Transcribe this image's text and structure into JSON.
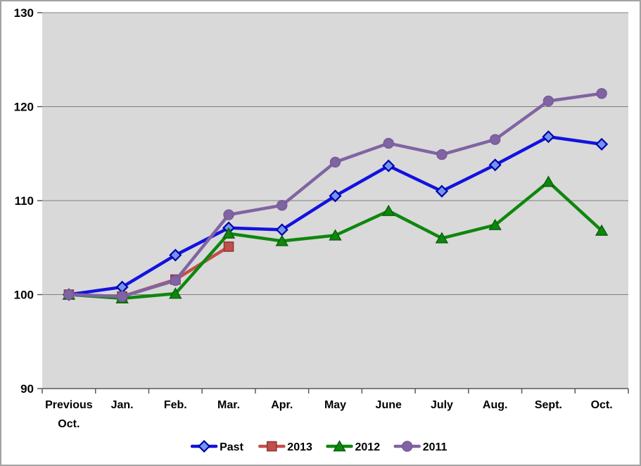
{
  "chart_data": {
    "type": "line",
    "title": "",
    "xlabel": "",
    "ylabel": "",
    "ylim": [
      90,
      130
    ],
    "y_ticks": [
      90,
      100,
      110,
      120,
      130
    ],
    "grid": "horizontal",
    "plot_bg_color": "#d9d9d9",
    "gridline_color": "#808080",
    "axis_color": "#595959",
    "legend_position": "bottom-center",
    "categories": [
      "Previous Oct.",
      "Jan.",
      "Feb.",
      "Mar.",
      "Apr.",
      "May",
      "June",
      "July",
      "Aug.",
      "Sept.",
      "Oct."
    ],
    "series": [
      {
        "name": "Past",
        "marker": "diamond",
        "color": "#1212e0",
        "marker_fill": "#7096f0",
        "marker_stroke": "#0000a8",
        "values": [
          100,
          100.8,
          104.2,
          107.1,
          106.9,
          110.5,
          113.7,
          111.0,
          113.8,
          116.8,
          116.0
        ]
      },
      {
        "name": "2013",
        "marker": "square",
        "color": "#c0504d",
        "marker_fill": "#c0504d",
        "marker_stroke": "#943634",
        "values": [
          100,
          99.8,
          101.6,
          105.1,
          null,
          null,
          null,
          null,
          null,
          null,
          null
        ]
      },
      {
        "name": "2012",
        "marker": "triangle",
        "color": "#0e870e",
        "marker_fill": "#0e870e",
        "marker_stroke": "#076007",
        "values": [
          100,
          99.6,
          100.1,
          106.5,
          105.7,
          106.3,
          108.9,
          106.0,
          107.4,
          112.0,
          106.8
        ]
      },
      {
        "name": "2011",
        "marker": "circle",
        "color": "#8064a2",
        "marker_fill": "#8064a2",
        "marker_stroke": "#74589a",
        "values": [
          100,
          99.8,
          101.5,
          108.5,
          109.5,
          114.1,
          116.1,
          114.9,
          116.5,
          120.6,
          121.4
        ]
      }
    ]
  }
}
